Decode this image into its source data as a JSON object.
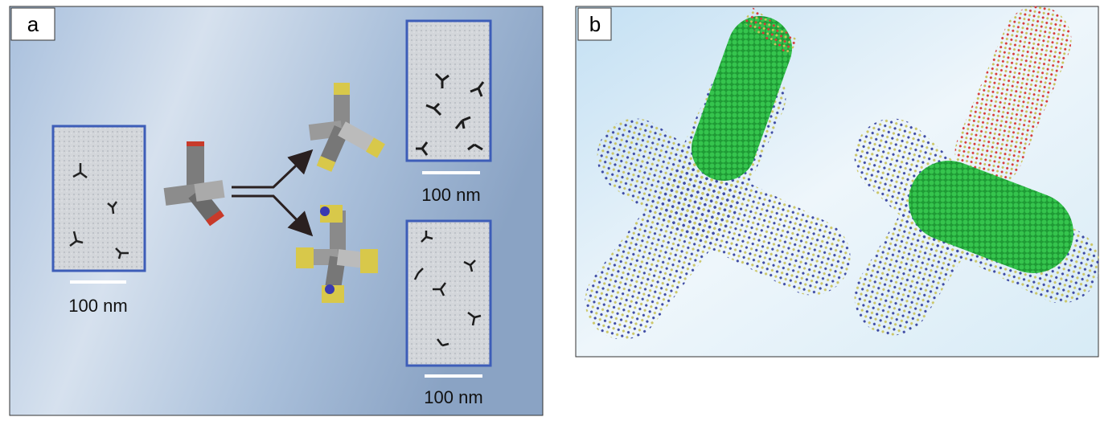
{
  "panels": [
    {
      "label": "a",
      "scale_labels": [
        "100 nm",
        "100 nm",
        "100 nm"
      ]
    },
    {
      "label": "b"
    }
  ]
}
